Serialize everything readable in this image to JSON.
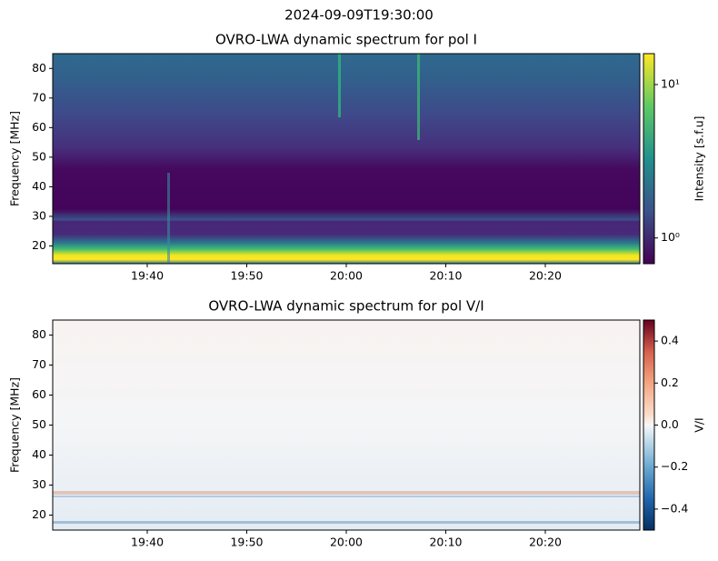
{
  "suptitle": "2024-09-09T19:30:00",
  "chart_data": [
    {
      "type": "heatmap",
      "title": "OVRO-LWA dynamic spectrum for pol I",
      "ylabel": "Frequency [MHz]",
      "xlim": [
        "19:30:30",
        "20:29:30"
      ],
      "xticks": [
        "19:40",
        "19:50",
        "20:00",
        "20:10",
        "20:20"
      ],
      "ylim": [
        14,
        85
      ],
      "yticks": [
        20,
        30,
        40,
        50,
        60,
        70,
        80
      ],
      "colormap": "viridis",
      "colorbar": {
        "label": "Intensity [s.f.u]",
        "log": true,
        "lim": [
          0.68,
          15.9
        ],
        "ticks": [
          {
            "value": 1,
            "label": "10⁰"
          },
          {
            "value": 10,
            "label": "10¹"
          }
        ]
      }
    },
    {
      "type": "heatmap",
      "title": "OVRO-LWA dynamic spectrum for pol V/I",
      "ylabel": "Frequency [MHz]",
      "xlim": [
        "19:30:30",
        "20:29:30"
      ],
      "xticks": [
        "19:40",
        "19:50",
        "20:00",
        "20:10",
        "20:20"
      ],
      "ylim": [
        15,
        85
      ],
      "yticks": [
        20,
        30,
        40,
        50,
        60,
        70,
        80
      ],
      "colormap": "RdBu_r",
      "colorbar": {
        "label": "V/I",
        "log": false,
        "lim": [
          -0.5,
          0.5
        ],
        "ticks": [
          {
            "value": -0.4,
            "label": "−0.4"
          },
          {
            "value": -0.2,
            "label": "−0.2"
          },
          {
            "value": 0,
            "label": "0.0"
          },
          0.2,
          0.4
        ]
      }
    }
  ]
}
